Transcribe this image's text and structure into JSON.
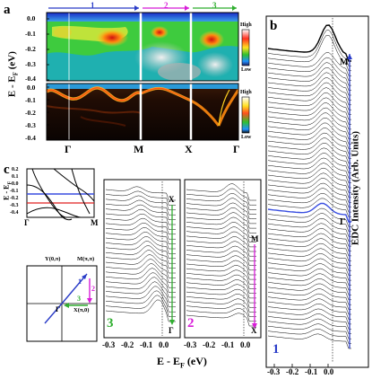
{
  "panels": {
    "a": "a",
    "b": "b",
    "c": "c"
  },
  "panel_a": {
    "segment_labels": [
      "1",
      "2",
      "3"
    ],
    "y_axis_label": "E - E",
    "y_axis_sub": "F",
    "y_axis_unit": " (eV)",
    "yticks_top": [
      "0.0",
      "-0.1",
      "-0.2",
      "-0.3",
      "-0.4"
    ],
    "yticks_bottom": [
      "0.0",
      "-0.1",
      "-0.2",
      "-0.3",
      "-0.4"
    ],
    "colorbar_high": "High",
    "colorbar_low": "Low",
    "x_symmetry_points": [
      "Γ",
      "M",
      "X",
      "Γ"
    ]
  },
  "panel_b": {
    "y_axis_label": "EDC Intensity (Arb. Units)",
    "marker_top": "M",
    "marker_mid": "Γ",
    "corner_number": "1"
  },
  "panel_c": {
    "inset_ylabel": "E - E",
    "inset_ylabel_sub": "F",
    "inset_yticks": [
      "0.2",
      "0.1",
      "0.0",
      "-0.1",
      "-0.2",
      "-0.3",
      "-0.4"
    ],
    "inset_xticks": [
      "Γ",
      "M"
    ],
    "bz_labels": {
      "y": "Y(0,π)",
      "m": "M(π,π)",
      "gamma": "Γ",
      "x": "X(π,0)",
      "path1": "1",
      "path2": "2",
      "path3": "3"
    },
    "stack3": {
      "top": "X",
      "bottom": "Γ",
      "number": "3"
    },
    "stack2": {
      "top": "M",
      "bottom": "X",
      "number": "2"
    }
  },
  "bottom_axis": {
    "ticks": [
      "-0.3",
      "-0.2",
      "-0.1",
      "0.0"
    ],
    "label": "E - E",
    "label_sub": "F",
    "label_unit": " (eV)"
  },
  "colors": {
    "path1": "#2a3cc8",
    "path2": "#d81cd8",
    "path3": "#2fae2f",
    "highlight_blue": "#3a4fe0",
    "highlight_red": "#e02020"
  }
}
